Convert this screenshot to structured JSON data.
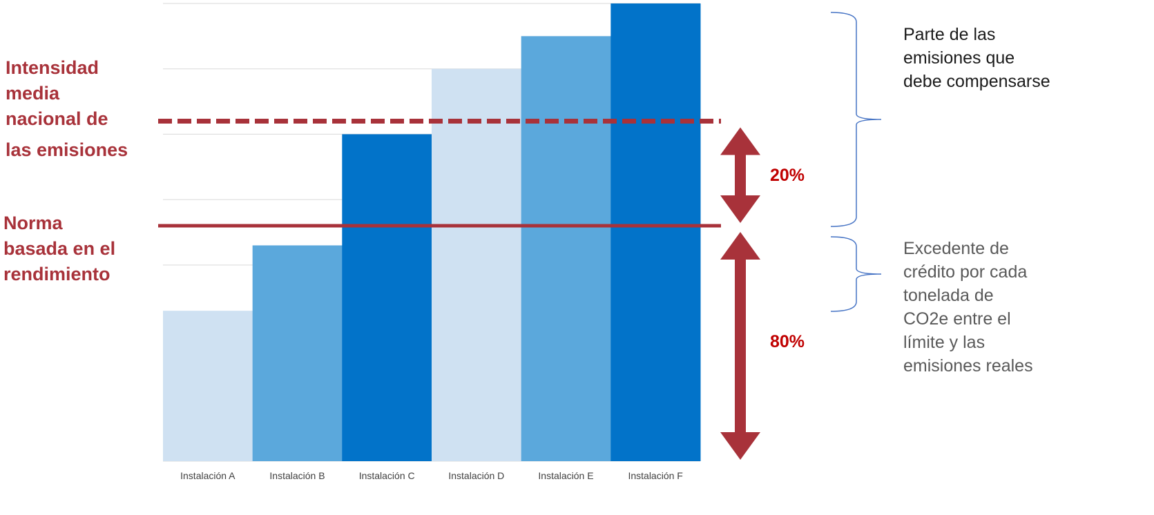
{
  "colors": {
    "light": "#cfe1f2",
    "mid": "#5ba8dc",
    "dark": "#0273c9",
    "annotation_red": "#a8323a",
    "pct_red": "#c00000",
    "brace": "#4472c4"
  },
  "chart_data": {
    "type": "bar",
    "categories": [
      "Instalación A",
      "Instalación B",
      "Instalación C",
      "Instalación D",
      "Instalación E",
      "Instalación F"
    ],
    "values": [
      23,
      33,
      50,
      60,
      65,
      70
    ],
    "bar_colors": [
      "light",
      "mid",
      "dark",
      "light",
      "mid",
      "dark"
    ],
    "ylim": [
      0,
      70
    ],
    "grid": true,
    "gridlines": [
      10,
      20,
      30,
      40,
      50,
      60,
      70
    ],
    "reference_lines": [
      {
        "label": "Intensidad media nacional de las emisiones",
        "value": 52,
        "style": "dashed"
      },
      {
        "label": "Norma basada en el rendimiento",
        "value": 36,
        "style": "solid"
      }
    ],
    "annotations": [
      {
        "text": "20%",
        "from": 36,
        "to": 52
      },
      {
        "text": "80%",
        "from": 0,
        "to": 36
      }
    ]
  },
  "labels": {
    "national_intensity": [
      "Intensidad",
      "media",
      "nacional de",
      "las emisiones"
    ],
    "performance_standard": [
      "Norma",
      "basada en el",
      "rendimiento"
    ],
    "pct_top": "20%",
    "pct_bottom": "80%",
    "compensate": [
      "Parte de las",
      "emisiones que",
      "debe compensarse"
    ],
    "surplus": [
      "Excedente de",
      "crédito por cada",
      "tonelada de",
      "CO2e entre el",
      "límite y las",
      "emisiones reales"
    ]
  }
}
